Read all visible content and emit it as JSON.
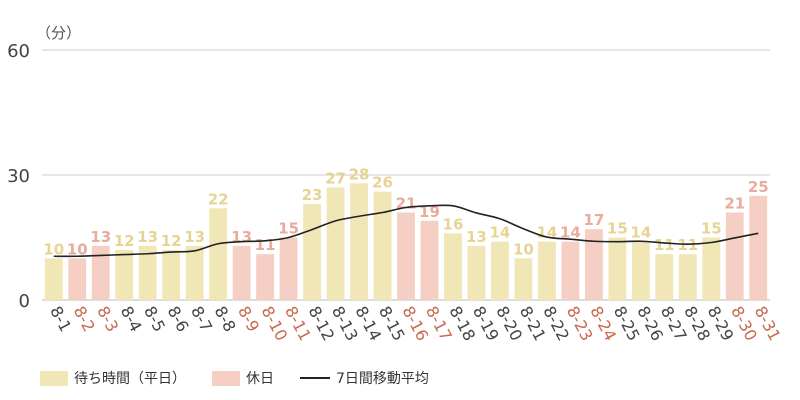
{
  "chart_data": {
    "type": "bar",
    "unit_label": "（分）",
    "y_ticks": [
      0,
      30,
      60
    ],
    "ylim": [
      0,
      60
    ],
    "grid": true,
    "categories": [
      "8-1",
      "8-2",
      "8-3",
      "8-4",
      "8-5",
      "8-6",
      "8-7",
      "8-8",
      "8-9",
      "8-10",
      "8-11",
      "8-12",
      "8-13",
      "8-14",
      "8-15",
      "8-16",
      "8-17",
      "8-18",
      "8-19",
      "8-20",
      "8-21",
      "8-22",
      "8-23",
      "8-24",
      "8-25",
      "8-26",
      "8-27",
      "8-28",
      "8-29",
      "8-30",
      "8-31"
    ],
    "holidays": [
      false,
      true,
      true,
      false,
      false,
      false,
      false,
      false,
      true,
      true,
      true,
      false,
      false,
      false,
      false,
      true,
      true,
      false,
      false,
      false,
      false,
      false,
      true,
      true,
      false,
      false,
      false,
      false,
      false,
      true,
      true
    ],
    "values": [
      10,
      10,
      13,
      12,
      13,
      12,
      13,
      22,
      13,
      11,
      15,
      23,
      27,
      28,
      26,
      21,
      19,
      16,
      13,
      14,
      10,
      14,
      14,
      17,
      15,
      14,
      11,
      11,
      15,
      21,
      25
    ],
    "moving_average": [
      10.5,
      10.5,
      10.7,
      10.9,
      11.1,
      11.5,
      11.8,
      13.5,
      14,
      14.2,
      15,
      16.9,
      19.0,
      20.1,
      21.0,
      22.2,
      22.6,
      22.6,
      20.9,
      19.5,
      17.1,
      15.1,
      14.6,
      14.1,
      14.0,
      14.1,
      13.7,
      13.4,
      13.8,
      14.9,
      16
    ]
  },
  "legend": {
    "weekday": "待ち時間（平日）",
    "holiday": "休日",
    "average": "7日間移動平均"
  },
  "colors": {
    "weekday_bar": "#f0e6b6",
    "holiday_bar": "#f5cfc4",
    "weekday_label": "#e6d493",
    "holiday_label": "#e9ac9c",
    "weekday_tick": "#444444",
    "holiday_tick": "#c8694e",
    "grid": "#cccccc",
    "line": "#222222"
  }
}
